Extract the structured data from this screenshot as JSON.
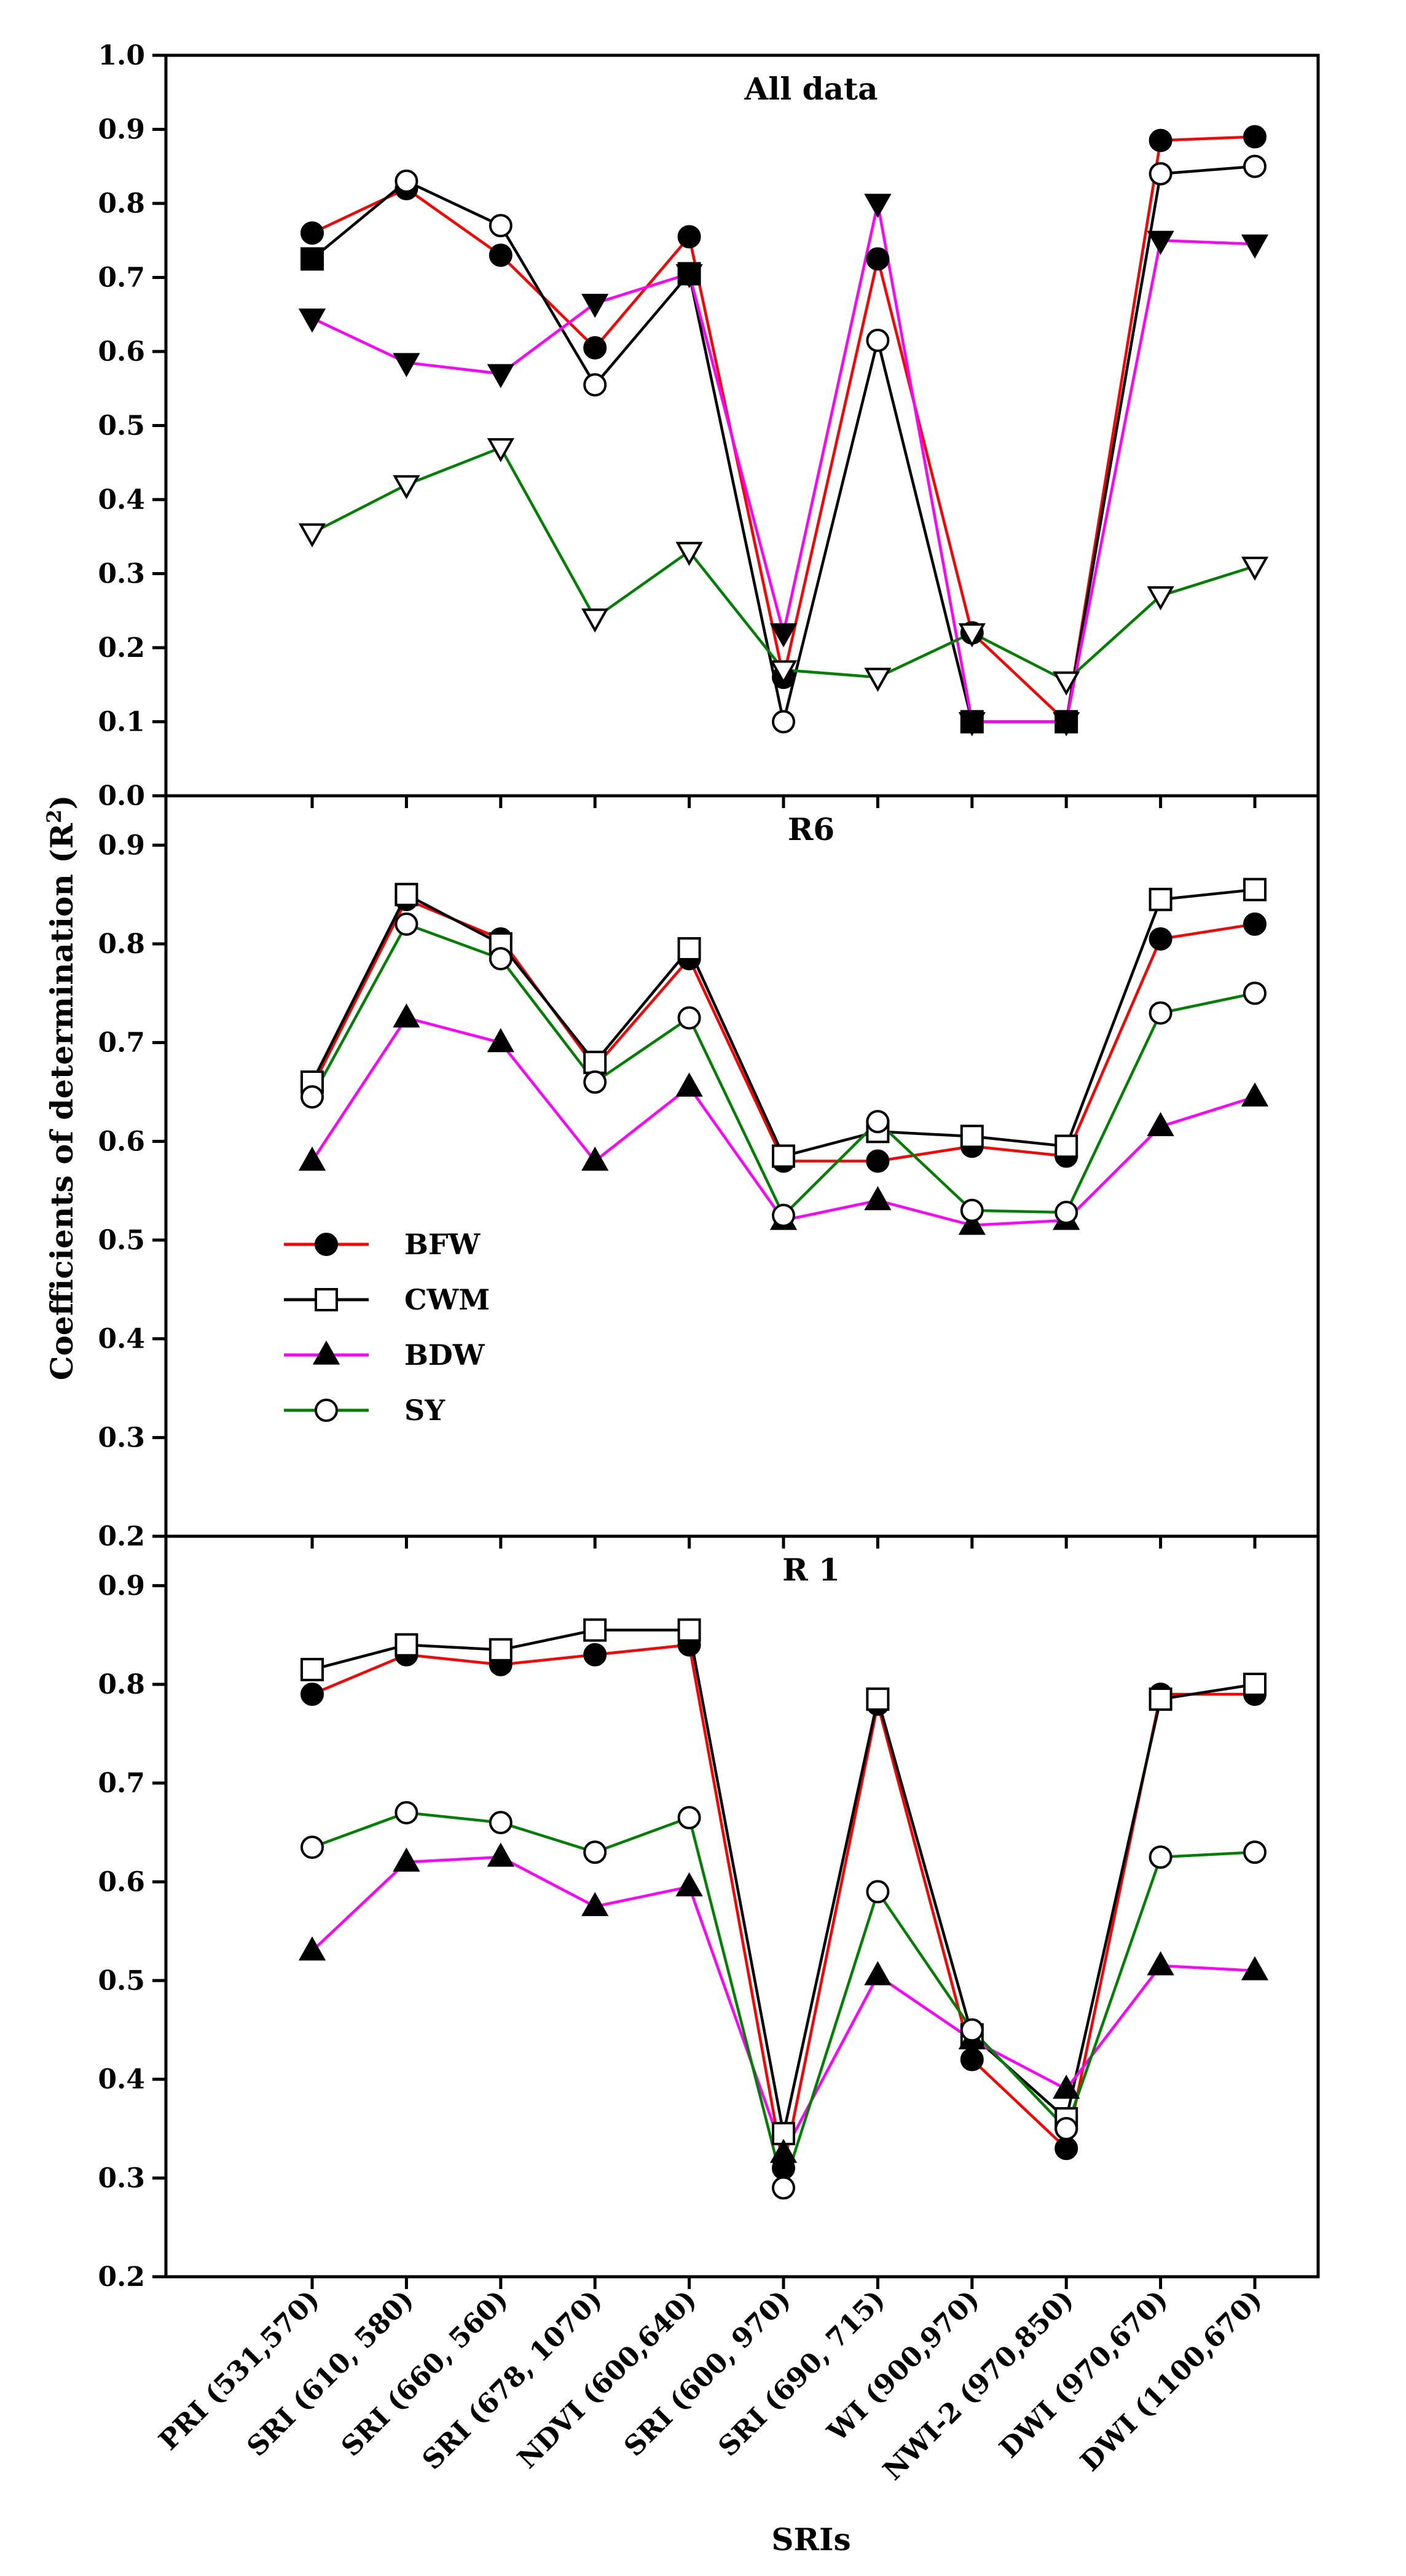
{
  "chart_data": {
    "type": "line",
    "ylabel": "Coefficients of determination  (R",
    "ylabel_sup": "2",
    "ylabel_tail": ")",
    "xlabel": "SRIs",
    "categories": [
      "PRI (531,570)",
      "SRI (610, 580)",
      "SRI (660, 560)",
      "SRI (678, 1070)",
      "NDVI (600,640)",
      "SRI (600, 970)",
      "SRI (690, 715)",
      "WI (900,970)",
      "NWI-2 (970,850)",
      "DWI (970,670)",
      "DWI (1100,670)"
    ],
    "legend": {
      "placement": "center-left of middle panel",
      "entries": [
        {
          "name": "BFW",
          "color": "#ff0000",
          "marker": "filled-circle"
        },
        {
          "name": "CWM",
          "color": "#000000",
          "marker": "open-square"
        },
        {
          "name": "BDW",
          "color": "#ff00ff",
          "marker": "filled-triangle-up"
        },
        {
          "name": "SY",
          "color": "#008000",
          "marker": "open-circle"
        }
      ]
    },
    "panels": [
      {
        "title": "All data",
        "ylim": [
          0.0,
          1.0
        ],
        "yticks": [
          "0.0",
          "0.1",
          "0.2",
          "0.3",
          "0.4",
          "0.5",
          "0.6",
          "0.7",
          "0.8",
          "0.9",
          "1.0"
        ],
        "series": [
          {
            "name": "BFW",
            "color": "#ff0000",
            "marker": "filled-circle",
            "values": [
              0.76,
              0.82,
              0.73,
              0.605,
              0.755,
              0.16,
              0.725,
              0.22,
              0.1,
              0.885,
              0.89
            ]
          },
          {
            "name": "CWM",
            "color": "#000000",
            "marker": "filled-square",
            "values": [
              0.725,
              0.83,
              0.77,
              0.555,
              0.705,
              0.1,
              0.615,
              0.1,
              0.1,
              0.84,
              0.85
            ]
          },
          {
            "name": "BDW",
            "color": "#ff00ff",
            "marker": "filled-triangle-down",
            "values": [
              0.645,
              0.585,
              0.57,
              0.665,
              0.705,
              0.22,
              0.8,
              0.1,
              0.1,
              0.75,
              0.745
            ]
          },
          {
            "name": "SY",
            "color": "#008000",
            "marker": "open-triangle-down",
            "values": [
              0.355,
              0.42,
              0.47,
              0.24,
              0.33,
              0.17,
              0.16,
              0.22,
              0.155,
              0.27,
              0.31
            ]
          }
        ],
        "marker_overrides": [
          {
            "series": "CWM",
            "point": 1,
            "marker": "open-circle"
          },
          {
            "series": "CWM",
            "point": 2,
            "marker": "open-circle"
          },
          {
            "series": "CWM",
            "point": 3,
            "marker": "open-circle"
          },
          {
            "series": "CWM",
            "point": 5,
            "marker": "open-circle"
          },
          {
            "series": "CWM",
            "point": 6,
            "marker": "open-circle"
          },
          {
            "series": "CWM",
            "point": 9,
            "marker": "open-circle"
          },
          {
            "series": "CWM",
            "point": 10,
            "marker": "open-circle"
          }
        ]
      },
      {
        "title": "R6",
        "ylim": [
          0.2,
          0.95
        ],
        "yticks": [
          "0.2",
          "0.3",
          "0.4",
          "0.5",
          "0.6",
          "0.7",
          "0.8",
          "0.9"
        ],
        "series": [
          {
            "name": "BFW",
            "color": "#ff0000",
            "marker": "filled-circle",
            "values": [
              0.655,
              0.845,
              0.805,
              0.675,
              0.785,
              0.58,
              0.58,
              0.595,
              0.585,
              0.805,
              0.82
            ]
          },
          {
            "name": "CWM",
            "color": "#000000",
            "marker": "open-square",
            "values": [
              0.66,
              0.85,
              0.8,
              0.68,
              0.795,
              0.585,
              0.61,
              0.605,
              0.595,
              0.845,
              0.855
            ]
          },
          {
            "name": "BDW",
            "color": "#ff00ff",
            "marker": "filled-triangle-up",
            "values": [
              0.58,
              0.725,
              0.7,
              0.58,
              0.655,
              0.52,
              0.54,
              0.515,
              0.52,
              0.615,
              0.645
            ]
          },
          {
            "name": "SY",
            "color": "#008000",
            "marker": "open-circle",
            "values": [
              0.645,
              0.82,
              0.785,
              0.66,
              0.725,
              0.525,
              0.62,
              0.53,
              0.528,
              0.73,
              0.75
            ]
          }
        ]
      },
      {
        "title": "R 1",
        "ylim": [
          0.2,
          0.95
        ],
        "yticks": [
          "0.2",
          "0.3",
          "0.4",
          "0.5",
          "0.6",
          "0.7",
          "0.8",
          "0.9"
        ],
        "series": [
          {
            "name": "BFW",
            "color": "#ff0000",
            "marker": "filled-circle",
            "values": [
              0.79,
              0.83,
              0.82,
              0.83,
              0.84,
              0.31,
              0.78,
              0.42,
              0.33,
              0.79,
              0.79
            ]
          },
          {
            "name": "CWM",
            "color": "#000000",
            "marker": "open-square",
            "values": [
              0.815,
              0.84,
              0.835,
              0.855,
              0.855,
              0.345,
              0.785,
              0.445,
              0.36,
              0.785,
              0.8
            ]
          },
          {
            "name": "BDW",
            "color": "#ff00ff",
            "marker": "filled-triangle-up",
            "values": [
              0.53,
              0.62,
              0.625,
              0.575,
              0.595,
              0.325,
              0.505,
              0.44,
              0.39,
              0.515,
              0.51
            ]
          },
          {
            "name": "SY",
            "color": "#008000",
            "marker": "open-circle",
            "values": [
              0.635,
              0.67,
              0.66,
              0.63,
              0.665,
              0.29,
              0.59,
              0.45,
              0.35,
              0.625,
              0.63
            ]
          }
        ]
      }
    ]
  }
}
